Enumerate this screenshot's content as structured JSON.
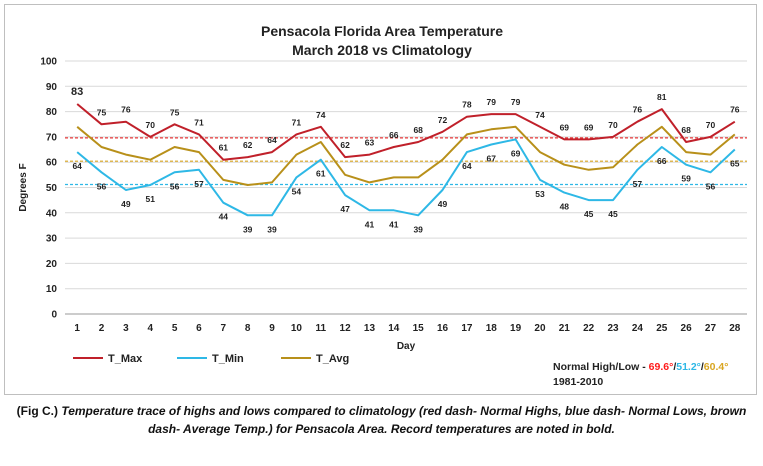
{
  "chart_data": {
    "type": "line",
    "title": [
      "Pensacola Florida Area Temperature",
      "March 2018 vs Climatology"
    ],
    "xlabel": "Day",
    "ylabel": "Degrees F",
    "ylim": [
      0,
      100
    ],
    "yticks": [
      0,
      10,
      20,
      30,
      40,
      50,
      60,
      70,
      80,
      90,
      100
    ],
    "x": [
      1,
      2,
      3,
      4,
      5,
      6,
      7,
      8,
      9,
      10,
      11,
      12,
      13,
      14,
      15,
      16,
      17,
      18,
      19,
      20,
      21,
      22,
      23,
      24,
      25,
      26,
      27,
      28
    ],
    "series": [
      {
        "name": "T_Max",
        "color": "#c0202a",
        "values": [
          83,
          75,
          76,
          70,
          75,
          71,
          61,
          62,
          64,
          71,
          74,
          62,
          63,
          66,
          68,
          72,
          78,
          79,
          79,
          74,
          69,
          69,
          70,
          76,
          81,
          68,
          70,
          76
        ],
        "label_position": "above"
      },
      {
        "name": "T_Min",
        "color": "#2eb8e6",
        "values": [
          64,
          56,
          49,
          51,
          56,
          57,
          44,
          39,
          39,
          54,
          61,
          47,
          41,
          41,
          39,
          49,
          64,
          67,
          69,
          53,
          48,
          45,
          45,
          57,
          66,
          59,
          56,
          65
        ],
        "label_position": "below"
      },
      {
        "name": "T_Avg",
        "color": "#b8901a",
        "values": [
          74,
          66,
          63,
          61,
          66,
          64,
          53,
          51,
          52,
          63,
          68,
          55,
          52,
          54,
          54,
          61,
          71,
          73,
          74,
          64,
          59,
          57,
          58,
          67,
          74,
          64,
          63,
          71
        ],
        "label_position": "none"
      }
    ],
    "normals": [
      {
        "value": 69.6,
        "color": "#e8393a",
        "style": "dashed"
      },
      {
        "value": 51.2,
        "color": "#2eb8e6",
        "style": "dashed"
      },
      {
        "value": 60.4,
        "color": "#d9a520",
        "style": "dashed"
      }
    ],
    "record_labels": [
      {
        "series": "T_Max",
        "day": 1,
        "value": 83,
        "color": "#ff1a1a"
      }
    ],
    "legend_position": "bottom-left",
    "grid": true,
    "normals_note": {
      "prefix": "Normal High/Low - ",
      "high": "69.6°",
      "slash1": "/",
      "low": "51.2°",
      "slash2": "/",
      "avg": "60.4°",
      "high_color": "#ff1a1a",
      "low_color": "#2eb8e6",
      "avg_color": "#d9a520",
      "period": "1981-2010"
    }
  },
  "caption": {
    "prefix": "(Fig C.) ",
    "text": "Temperature trace of highs and lows compared to climatology (red dash- Normal Highs, blue dash- Normal Lows, brown dash- Average Temp.) for Pensacola Area. Record temperatures are noted in bold."
  }
}
